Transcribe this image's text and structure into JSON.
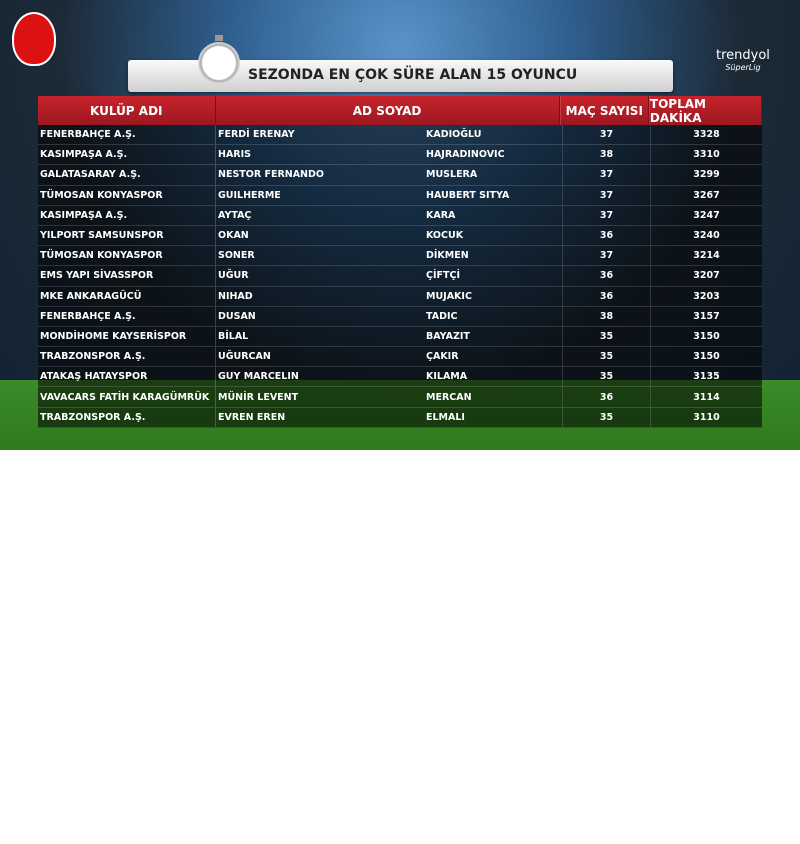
{
  "title": "SEZONDA EN ÇOK SÜRE ALAN 15 OYUNCU",
  "brand": {
    "name": "trendyol",
    "sub": "SüperLig"
  },
  "headers": [
    "KULÜP ADI",
    "AD SOYAD",
    "MAÇ SAYISI",
    "TOPLAM DAKİKA"
  ],
  "rows": [
    [
      "FENERBAHÇE A.Ş.",
      "FERDİ ERENAY",
      "KADIOĞLU",
      "37",
      "3328"
    ],
    [
      "KASIMPAŞA A.Ş.",
      "HARIS",
      "HAJRADINOVIC",
      "38",
      "3310"
    ],
    [
      "GALATASARAY A.Ş.",
      "NESTOR FERNANDO",
      "MUSLERA",
      "37",
      "3299"
    ],
    [
      "TÜMOSAN KONYASPOR",
      "GUILHERME",
      "HAUBERT SITYA",
      "37",
      "3267"
    ],
    [
      "KASIMPAŞA A.Ş.",
      "AYTAÇ",
      "KARA",
      "37",
      "3247"
    ],
    [
      "YILPORT SAMSUNSPOR",
      "OKAN",
      "KOCUK",
      "36",
      "3240"
    ],
    [
      "TÜMOSAN KONYASPOR",
      "SONER",
      "DİKMEN",
      "37",
      "3214"
    ],
    [
      "EMS YAPI SİVASSPOR",
      "UĞUR",
      "ÇİFTÇİ",
      "36",
      "3207"
    ],
    [
      "MKE ANKARAGÜCÜ",
      "NIHAD",
      "MUJAKIC",
      "36",
      "3203"
    ],
    [
      "FENERBAHÇE A.Ş.",
      "DUSAN",
      "TADIC",
      "38",
      "3157"
    ],
    [
      "MONDİHOME KAYSERİSPOR",
      "BİLAL",
      "BAYAZIT",
      "35",
      "3150"
    ],
    [
      "TRABZONSPOR A.Ş.",
      "UĞURCAN",
      "ÇAKIR",
      "35",
      "3150"
    ],
    [
      "ATAKAŞ HATAYSPOR",
      "GUY MARCELIN",
      "KILAMA",
      "35",
      "3135"
    ],
    [
      "VAVACARS FATİH KARAGÜMRÜK",
      "MÜNİR LEVENT",
      "MERCAN",
      "36",
      "3114"
    ],
    [
      "TRABZONSPOR A.Ş.",
      "EVREN EREN",
      "ELMALI",
      "35",
      "3110"
    ]
  ]
}
